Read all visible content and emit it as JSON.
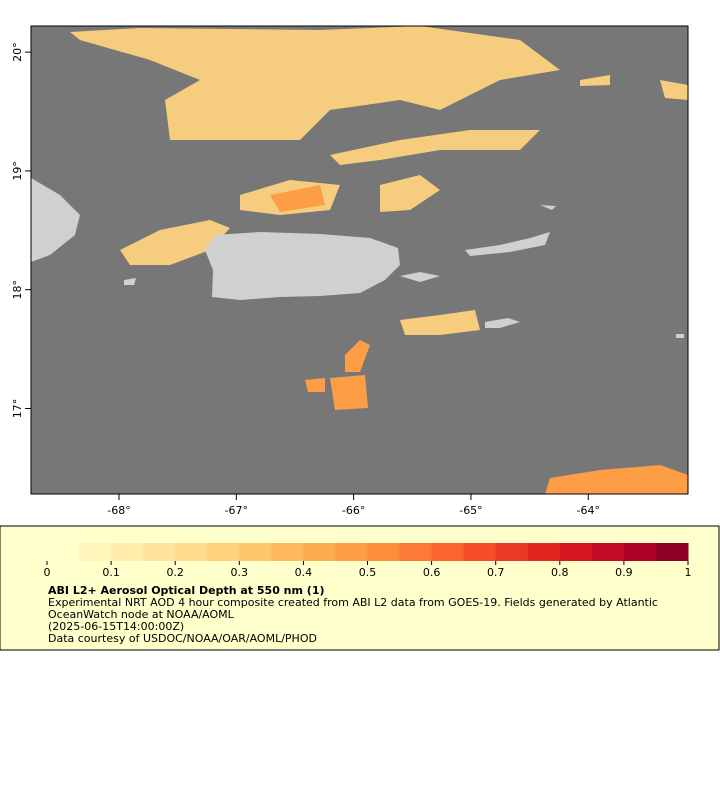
{
  "map": {
    "xlim": [
      -68.75,
      -63.15
    ],
    "ylim": [
      16.28,
      20.22
    ],
    "xticks": [
      {
        "value": -68,
        "label": "-68°"
      },
      {
        "value": -67,
        "label": "-67°"
      },
      {
        "value": -66,
        "label": "-66°"
      },
      {
        "value": -65,
        "label": "-65°"
      },
      {
        "value": -64,
        "label": "-64°"
      }
    ],
    "yticks": [
      {
        "value": 17,
        "label": "17°"
      },
      {
        "value": 18,
        "label": "18°"
      },
      {
        "value": 19,
        "label": "19°"
      },
      {
        "value": 20,
        "label": "20°"
      }
    ]
  },
  "colorbar": {
    "lim": [
      0,
      1
    ],
    "ticks": [
      0,
      0.1,
      0.2,
      0.3,
      0.4,
      0.5,
      0.6,
      0.7,
      0.8,
      0.9,
      1
    ],
    "colors": [
      "#ffffcc",
      "#fff6bc",
      "#ffedac",
      "#fee49c",
      "#fedc8c",
      "#fed27c",
      "#fec66b",
      "#feb95d",
      "#fdac50",
      "#fd9d45",
      "#fd8c3c",
      "#fc7a35",
      "#fc642e",
      "#f64f28",
      "#ec3923",
      "#e2261e",
      "#d41620",
      "#c30a24",
      "#ac0026",
      "#8f0026"
    ]
  },
  "legend": {
    "title": "ABI L2+ Aerosol Optical Depth at 550 nm (1)",
    "lines": [
      "Experimental NRT AOD 4 hour composite created from ABI L2 data from GOES-19. Fields generated by Atlantic",
      "OceanWatch node at NOAA/AOML",
      "(2025-06-15T14:00:00Z)",
      "Data courtesy of USDOC/NOAA/OAR/AOML/PHOD"
    ]
  }
}
